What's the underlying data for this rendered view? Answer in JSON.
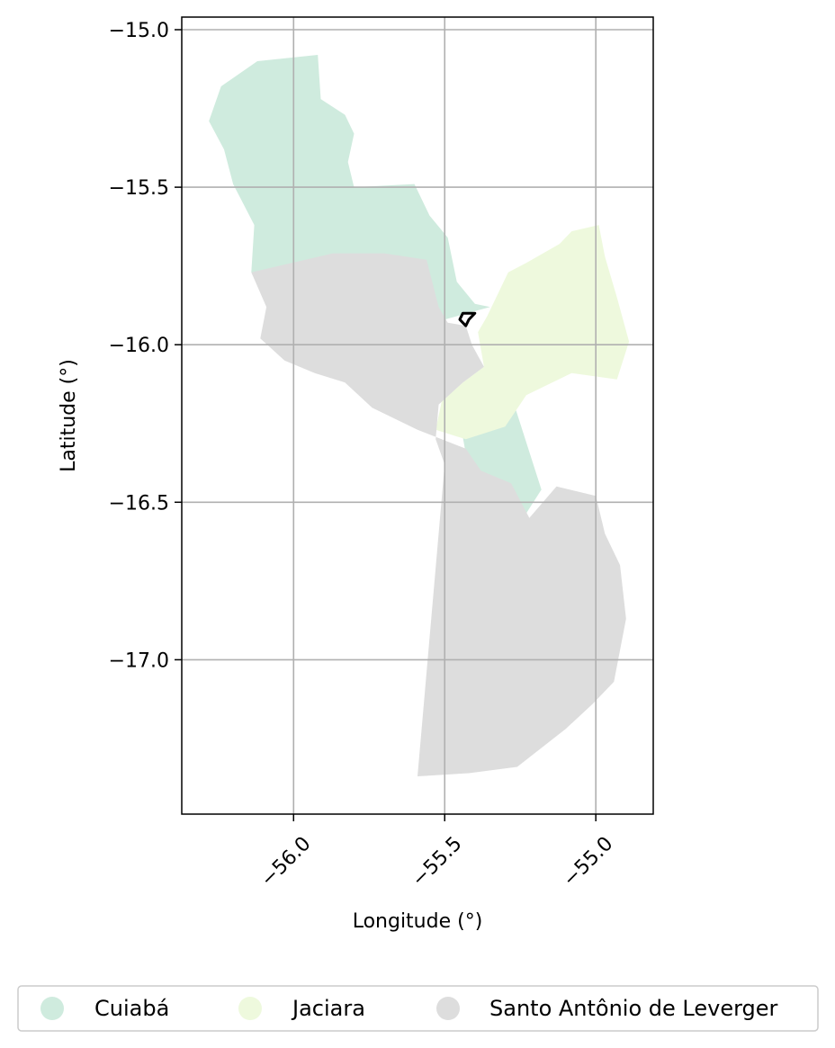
{
  "chart_data": {
    "type": "map",
    "xlabel": "Longitude (°)",
    "ylabel": "Latitude (°)",
    "xlim": [
      -56.37,
      -54.81
    ],
    "ylim": [
      -17.49,
      -14.96
    ],
    "xticks": [
      -56.0,
      -55.5,
      -55.0
    ],
    "xtick_labels": [
      "−56.0",
      "−55.5",
      "−55.0"
    ],
    "yticks": [
      -15.0,
      -15.5,
      -16.0,
      -16.5,
      -17.0
    ],
    "ytick_labels": [
      "−15.0",
      "−15.5",
      "−16.0",
      "−16.5",
      "−17.0"
    ],
    "grid": true,
    "legend_position": "bottom",
    "series": [
      {
        "name": "Cuiabá",
        "color": "#cfebde",
        "polygons": [
          [
            [
              -56.12,
              -15.1
            ],
            [
              -55.92,
              -15.08
            ],
            [
              -55.91,
              -15.22
            ],
            [
              -55.83,
              -15.27
            ],
            [
              -55.8,
              -15.33
            ],
            [
              -55.82,
              -15.42
            ],
            [
              -55.8,
              -15.5
            ],
            [
              -55.6,
              -15.49
            ],
            [
              -55.55,
              -15.59
            ],
            [
              -55.49,
              -15.66
            ],
            [
              -55.46,
              -15.8
            ],
            [
              -55.4,
              -15.87
            ],
            [
              -55.35,
              -15.88
            ],
            [
              -55.5,
              -15.92
            ],
            [
              -55.53,
              -15.88
            ],
            [
              -55.58,
              -15.76
            ],
            [
              -55.75,
              -15.76
            ],
            [
              -55.85,
              -15.73
            ],
            [
              -56.14,
              -15.77
            ],
            [
              -56.13,
              -15.62
            ],
            [
              -56.2,
              -15.49
            ],
            [
              -56.23,
              -15.38
            ],
            [
              -56.28,
              -15.29
            ],
            [
              -56.24,
              -15.18
            ]
          ],
          [
            [
              -55.45,
              -16.24
            ],
            [
              -55.28,
              -16.16
            ],
            [
              -55.18,
              -16.46
            ],
            [
              -55.24,
              -16.55
            ],
            [
              -55.32,
              -16.51
            ],
            [
              -55.42,
              -16.4
            ]
          ]
        ]
      },
      {
        "name": "Jaciara",
        "color": "#eef9dd",
        "polygons": [
          [
            [
              -55.08,
              -15.64
            ],
            [
              -54.99,
              -15.62
            ],
            [
              -54.97,
              -15.72
            ],
            [
              -54.93,
              -15.85
            ],
            [
              -54.89,
              -15.99
            ],
            [
              -54.93,
              -16.11
            ],
            [
              -55.08,
              -16.09
            ],
            [
              -55.23,
              -16.16
            ],
            [
              -55.3,
              -16.26
            ],
            [
              -55.43,
              -16.3
            ],
            [
              -55.53,
              -16.27
            ],
            [
              -55.51,
              -16.18
            ],
            [
              -55.44,
              -16.12
            ],
            [
              -55.37,
              -16.07
            ],
            [
              -55.39,
              -15.96
            ],
            [
              -55.36,
              -15.91
            ],
            [
              -55.29,
              -15.77
            ],
            [
              -55.23,
              -15.74
            ],
            [
              -55.12,
              -15.68
            ]
          ]
        ]
      },
      {
        "name": "Santo Antônio de Leverger",
        "color": "#dddddd",
        "polygons": [
          [
            [
              -56.14,
              -15.77
            ],
            [
              -55.87,
              -15.71
            ],
            [
              -55.7,
              -15.71
            ],
            [
              -55.56,
              -15.73
            ],
            [
              -55.52,
              -15.88
            ],
            [
              -55.49,
              -15.93
            ],
            [
              -55.43,
              -15.94
            ],
            [
              -55.41,
              -16.0
            ],
            [
              -55.37,
              -16.07
            ],
            [
              -55.44,
              -16.12
            ],
            [
              -55.52,
              -16.19
            ],
            [
              -55.53,
              -16.3
            ],
            [
              -55.5,
              -16.38
            ],
            [
              -55.59,
              -17.37
            ],
            [
              -55.42,
              -17.36
            ],
            [
              -55.26,
              -17.34
            ],
            [
              -55.1,
              -17.22
            ],
            [
              -55.01,
              -17.14
            ],
            [
              -54.94,
              -17.07
            ],
            [
              -54.9,
              -16.87
            ],
            [
              -54.92,
              -16.7
            ],
            [
              -54.97,
              -16.6
            ],
            [
              -55.0,
              -16.48
            ],
            [
              -55.13,
              -16.45
            ],
            [
              -55.22,
              -16.55
            ],
            [
              -55.28,
              -16.44
            ],
            [
              -55.38,
              -16.4
            ],
            [
              -55.43,
              -16.33
            ],
            [
              -55.59,
              -16.27
            ],
            [
              -55.74,
              -16.2
            ],
            [
              -55.83,
              -16.12
            ],
            [
              -55.93,
              -16.09
            ],
            [
              -56.03,
              -16.05
            ],
            [
              -56.11,
              -15.98
            ],
            [
              -56.09,
              -15.88
            ]
          ]
        ]
      },
      {
        "name": "",
        "color": "#000000",
        "style": "outline",
        "polygons": [
          [
            [
              -55.44,
              -15.9
            ],
            [
              -55.4,
              -15.9
            ],
            [
              -55.42,
              -15.92
            ],
            [
              -55.43,
              -15.94
            ],
            [
              -55.45,
              -15.92
            ]
          ]
        ]
      }
    ]
  }
}
